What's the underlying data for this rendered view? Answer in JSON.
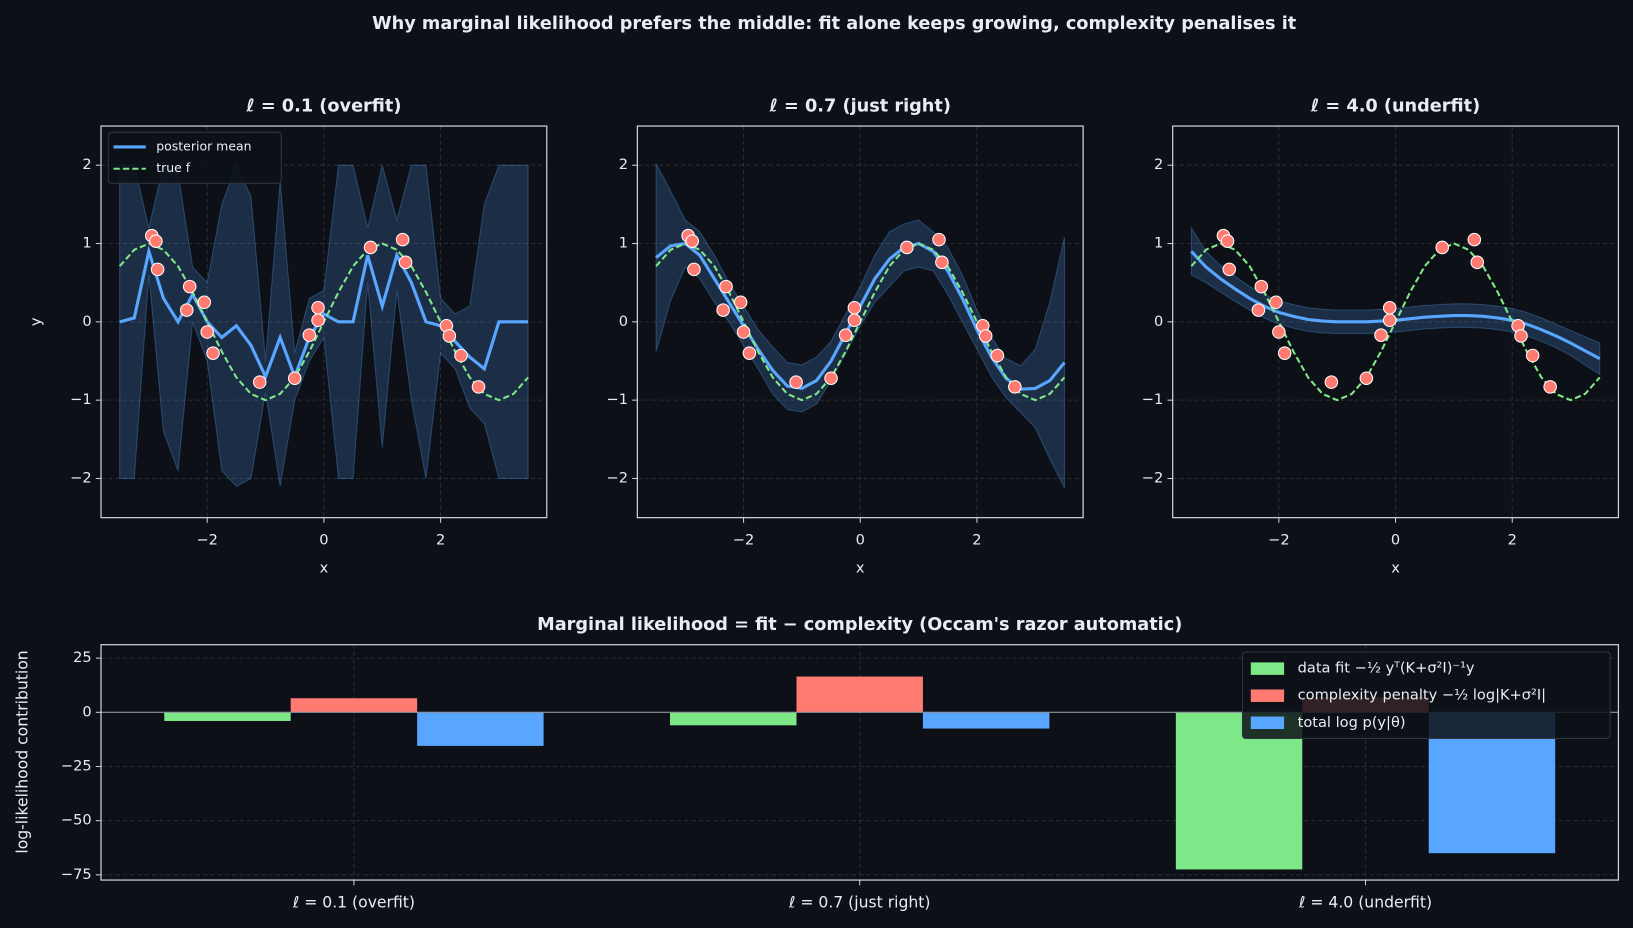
{
  "title": "Why marginal likelihood prefers the middle: fit alone keeps growing, complexity penalises it",
  "chart_data": [
    {
      "type": "line",
      "title": "ℓ = 0.1 (overfit)",
      "xlabel": "x",
      "ylabel": "y",
      "legend": "upper left",
      "grid": true,
      "xlim": [
        -3.82,
        3.82
      ],
      "ylim": [
        -2.5,
        2.5
      ],
      "xticks": [
        {
          "value": -2,
          "label": "−2"
        },
        0,
        2
      ],
      "yticks": [
        {
          "value": -2,
          "label": "−2"
        },
        {
          "value": -1,
          "label": "−1"
        },
        0,
        1,
        2
      ],
      "x": [
        -3.5,
        -3.25,
        -3,
        -2.75,
        -2.5,
        -2.25,
        -2,
        -1.75,
        -1.5,
        -1.25,
        -1,
        -0.75,
        -0.5,
        -0.25,
        0,
        0.25,
        0.5,
        0.75,
        1,
        1.25,
        1.5,
        1.75,
        2,
        2.25,
        2.5,
        2.75,
        3,
        3.25,
        3.5
      ],
      "band": {
        "color": "#58a6ff",
        "lower": [
          -2,
          -2,
          0.6,
          -1.4,
          -1.9,
          0,
          -0.5,
          -1.9,
          -2.1,
          -2,
          -0.9,
          -2.1,
          -1,
          -0.5,
          -0.2,
          -2,
          -2,
          0.5,
          -1.6,
          0.4,
          -1,
          -2,
          -0.4,
          -0.6,
          -1.1,
          -1.3,
          -2,
          -2,
          -2
        ],
        "upper": [
          2,
          2,
          1.2,
          2,
          1.9,
          0.7,
          0.5,
          1.5,
          2,
          1.6,
          -0.5,
          1.8,
          -0.4,
          0.3,
          0.4,
          2,
          2,
          1.2,
          2,
          1.3,
          2,
          2,
          0.3,
          0.1,
          0.2,
          1.5,
          2,
          2,
          2
        ]
      },
      "series": [
        {
          "name": "posterior mean",
          "color": "#58a6ff",
          "style": "solid",
          "values": [
            0,
            0.05,
            0.9,
            0.3,
            0,
            0.35,
            0,
            -0.2,
            -0.05,
            -0.3,
            -0.7,
            -0.2,
            -0.7,
            -0.2,
            0.1,
            0,
            0,
            0.85,
            0.2,
            0.85,
            0.5,
            0,
            -0.05,
            -0.25,
            -0.45,
            -0.6,
            0,
            0,
            0
          ]
        },
        {
          "name": "true f",
          "color": "#7ee787",
          "style": "dashed",
          "values": [
            0.71,
            0.92,
            1,
            0.92,
            0.71,
            0.38,
            0,
            -0.38,
            -0.71,
            -0.92,
            -1,
            -0.92,
            -0.71,
            -0.38,
            0,
            0.38,
            0.71,
            0.92,
            1,
            0.92,
            0.71,
            0.38,
            0,
            -0.38,
            -0.71,
            -0.92,
            -1,
            -0.92,
            -0.71
          ]
        }
      ],
      "points": {
        "color": "#ff7b72",
        "x": [
          -2.95,
          -2.88,
          -2.85,
          -2.3,
          -2.35,
          -2.05,
          -2.0,
          -1.9,
          -1.1,
          -0.5,
          -0.25,
          -0.1,
          -0.1,
          0.8,
          1.35,
          1.4,
          2.1,
          2.15,
          2.35,
          2.65
        ],
        "y": [
          1.1,
          1.03,
          0.67,
          0.45,
          0.15,
          0.25,
          -0.13,
          -0.4,
          -0.77,
          -0.72,
          -0.17,
          0.18,
          0.02,
          0.95,
          1.05,
          0.76,
          -0.05,
          -0.18,
          -0.43,
          -0.83
        ]
      }
    },
    {
      "type": "line",
      "title": "ℓ = 0.7 (just right)",
      "xlabel": "x",
      "grid": true,
      "xlim": [
        -3.82,
        3.82
      ],
      "ylim": [
        -2.5,
        2.5
      ],
      "xticks": [
        {
          "value": -2,
          "label": "−2"
        },
        0,
        2
      ],
      "yticks": [
        {
          "value": -2,
          "label": "−2"
        },
        {
          "value": -1,
          "label": "−1"
        },
        0,
        1,
        2
      ],
      "x": [
        -3.5,
        -3.25,
        -3,
        -2.75,
        -2.5,
        -2.25,
        -2,
        -1.75,
        -1.5,
        -1.25,
        -1,
        -0.75,
        -0.5,
        -0.25,
        0,
        0.25,
        0.5,
        0.75,
        1,
        1.25,
        1.5,
        1.75,
        2,
        2.25,
        2.5,
        2.75,
        3,
        3.25,
        3.5
      ],
      "band": {
        "color": "#58a6ff",
        "lower": [
          -0.38,
          0.27,
          0.7,
          0.55,
          0.25,
          0,
          -0.3,
          -0.6,
          -0.92,
          -1.12,
          -1.15,
          -1.05,
          -0.75,
          -0.4,
          -0.05,
          0.25,
          0.45,
          0.65,
          0.7,
          0.65,
          0.35,
          0,
          -0.35,
          -0.7,
          -0.97,
          -1.16,
          -1.35,
          -1.75,
          -2.12
        ],
        "upper": [
          2.02,
          1.67,
          1.3,
          1.15,
          0.85,
          0.5,
          0.2,
          -0.1,
          -0.32,
          -0.52,
          -0.55,
          -0.45,
          -0.25,
          0.1,
          0.45,
          0.85,
          1.15,
          1.25,
          1.3,
          1.15,
          0.95,
          0.6,
          0.15,
          -0.2,
          -0.47,
          -0.56,
          -0.35,
          0.25,
          1.08
        ]
      },
      "series": [
        {
          "color": "#58a6ff",
          "style": "solid",
          "values": [
            0.82,
            0.97,
            1.0,
            0.85,
            0.55,
            0.25,
            -0.05,
            -0.35,
            -0.62,
            -0.82,
            -0.85,
            -0.75,
            -0.5,
            -0.15,
            0.2,
            0.55,
            0.8,
            0.95,
            1.0,
            0.9,
            0.65,
            0.3,
            -0.1,
            -0.45,
            -0.72,
            -0.86,
            -0.85,
            -0.75,
            -0.52
          ]
        },
        {
          "color": "#7ee787",
          "style": "dashed",
          "values": [
            0.71,
            0.92,
            1,
            0.92,
            0.71,
            0.38,
            0,
            -0.38,
            -0.71,
            -0.92,
            -1,
            -0.92,
            -0.71,
            -0.38,
            0,
            0.38,
            0.71,
            0.92,
            1,
            0.92,
            0.71,
            0.38,
            0,
            -0.38,
            -0.71,
            -0.92,
            -1,
            -0.92,
            -0.71
          ]
        }
      ],
      "points": {
        "color": "#ff7b72",
        "x": [
          -2.95,
          -2.88,
          -2.85,
          -2.3,
          -2.35,
          -2.05,
          -2.0,
          -1.9,
          -1.1,
          -0.5,
          -0.25,
          -0.1,
          -0.1,
          0.8,
          1.35,
          1.4,
          2.1,
          2.15,
          2.35,
          2.65
        ],
        "y": [
          1.1,
          1.03,
          0.67,
          0.45,
          0.15,
          0.25,
          -0.13,
          -0.4,
          -0.77,
          -0.72,
          -0.17,
          0.18,
          0.02,
          0.95,
          1.05,
          0.76,
          -0.05,
          -0.18,
          -0.43,
          -0.83
        ]
      }
    },
    {
      "type": "line",
      "title": "ℓ = 4.0 (underfit)",
      "xlabel": "x",
      "grid": true,
      "xlim": [
        -3.82,
        3.82
      ],
      "ylim": [
        -2.5,
        2.5
      ],
      "xticks": [
        {
          "value": -2,
          "label": "−2"
        },
        0,
        2
      ],
      "yticks": [
        {
          "value": -2,
          "label": "−2"
        },
        {
          "value": -1,
          "label": "−1"
        },
        0,
        1,
        2
      ],
      "x": [
        -3.5,
        -3.25,
        -3,
        -2.75,
        -2.5,
        -2.25,
        -2,
        -1.75,
        -1.5,
        -1.25,
        -1,
        -0.75,
        -0.5,
        -0.25,
        0,
        0.25,
        0.5,
        0.75,
        1,
        1.25,
        1.5,
        1.75,
        2,
        2.25,
        2.5,
        2.75,
        3,
        3.25,
        3.5
      ],
      "band": {
        "color": "#58a6ff",
        "lower": [
          0.6,
          0.5,
          0.38,
          0.26,
          0.15,
          0.05,
          -0.03,
          -0.08,
          -0.12,
          -0.14,
          -0.15,
          -0.15,
          -0.15,
          -0.14,
          -0.13,
          -0.11,
          -0.09,
          -0.08,
          -0.07,
          -0.07,
          -0.08,
          -0.1,
          -0.13,
          -0.18,
          -0.25,
          -0.33,
          -0.43,
          -0.55,
          -0.67
        ],
        "upper": [
          1.2,
          0.9,
          0.72,
          0.58,
          0.45,
          0.35,
          0.27,
          0.22,
          0.18,
          0.16,
          0.15,
          0.15,
          0.15,
          0.16,
          0.17,
          0.19,
          0.21,
          0.22,
          0.23,
          0.23,
          0.22,
          0.2,
          0.17,
          0.12,
          0.05,
          -0.03,
          -0.11,
          -0.19,
          -0.27
        ]
      },
      "series": [
        {
          "color": "#58a6ff",
          "style": "solid",
          "values": [
            0.9,
            0.7,
            0.55,
            0.42,
            0.3,
            0.2,
            0.12,
            0.07,
            0.03,
            0.01,
            0,
            0,
            0,
            0.01,
            0.02,
            0.04,
            0.06,
            0.07,
            0.08,
            0.08,
            0.07,
            0.05,
            0.02,
            -0.03,
            -0.1,
            -0.18,
            -0.27,
            -0.37,
            -0.47
          ]
        },
        {
          "color": "#7ee787",
          "style": "dashed",
          "values": [
            0.71,
            0.92,
            1,
            0.92,
            0.71,
            0.38,
            0,
            -0.38,
            -0.71,
            -0.92,
            -1,
            -0.92,
            -0.71,
            -0.38,
            0,
            0.38,
            0.71,
            0.92,
            1,
            0.92,
            0.71,
            0.38,
            0,
            -0.38,
            -0.71,
            -0.92,
            -1,
            -0.92,
            -0.71
          ]
        }
      ],
      "points": {
        "color": "#ff7b72",
        "x": [
          -2.95,
          -2.88,
          -2.85,
          -2.3,
          -2.35,
          -2.05,
          -2.0,
          -1.9,
          -1.1,
          -0.5,
          -0.25,
          -0.1,
          -0.1,
          0.8,
          1.35,
          1.4,
          2.1,
          2.15,
          2.35,
          2.65
        ],
        "y": [
          1.1,
          1.03,
          0.67,
          0.45,
          0.15,
          0.25,
          -0.13,
          -0.4,
          -0.77,
          -0.72,
          -0.17,
          0.18,
          0.02,
          0.95,
          1.05,
          0.76,
          -0.05,
          -0.18,
          -0.43,
          -0.83
        ]
      }
    },
    {
      "type": "bar",
      "title": "Marginal likelihood = fit − complexity (Occam's razor automatic)",
      "ylabel": "log-likelihood contribution",
      "legend": "upper right",
      "grid": true,
      "ylim": [
        -77.4,
        31.2
      ],
      "yticks": [
        {
          "value": -75,
          "label": "−75"
        },
        {
          "value": -50,
          "label": "−50"
        },
        {
          "value": -25,
          "label": "−25"
        },
        0,
        25
      ],
      "categories": [
        "ℓ = 0.1 (overfit)",
        "ℓ = 0.7 (just right)",
        "ℓ = 4.0 (underfit)"
      ],
      "series": [
        {
          "name": "data fit  −½ yᵀ(K+σ²I)⁻¹y",
          "color": "#7ee787",
          "values": [
            -4,
            -6,
            -72.5
          ]
        },
        {
          "name": "complexity penalty  −½ log|K+σ²I|",
          "color": "#ff7b72",
          "values": [
            6.5,
            16.5,
            7
          ]
        },
        {
          "name": "total log p(y|θ)",
          "color": "#58a6ff",
          "values": [
            -15.5,
            -7.5,
            -65
          ]
        }
      ]
    }
  ]
}
